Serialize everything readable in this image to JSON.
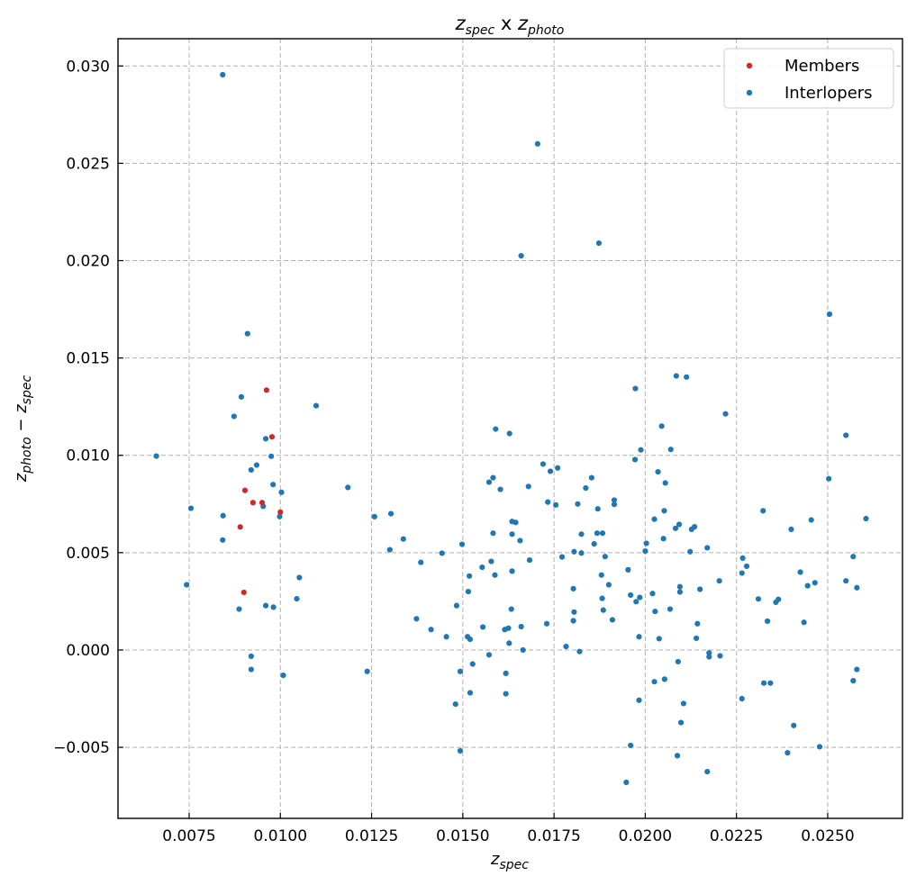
{
  "chart_data": {
    "type": "scatter",
    "title": {
      "base": "z",
      "sub": "spec",
      "mid": " x ",
      "base2": "z",
      "sub2": "photo"
    },
    "xlabel": {
      "base": "z",
      "sub": "spec"
    },
    "ylabel": {
      "base": "z",
      "sub": "photo",
      "mid": " − ",
      "base2": "z",
      "sub2": "spec"
    },
    "xlim": [
      0.00555,
      0.02705
    ],
    "ylim": [
      -0.00865,
      0.0314
    ],
    "xticks": [
      "0.0075",
      "0.0100",
      "0.0125",
      "0.0150",
      "0.0175",
      "0.0200",
      "0.0225",
      "0.0250"
    ],
    "xtick_values": [
      0.0075,
      0.01,
      0.0125,
      0.015,
      0.0175,
      0.02,
      0.0225,
      0.025
    ],
    "yticks": [
      "−0.005",
      "0.000",
      "0.005",
      "0.010",
      "0.015",
      "0.020",
      "0.025",
      "0.030"
    ],
    "ytick_values": [
      -0.005,
      0.0,
      0.005,
      0.01,
      0.015,
      0.02,
      0.025,
      0.03
    ],
    "grid": true,
    "legend_position": "top-right",
    "series": [
      {
        "name": "Members",
        "color": "#d62728",
        "points": [
          [
            0.00962,
            0.01335
          ],
          [
            0.00977,
            0.01095
          ],
          [
            0.00903,
            0.0082
          ],
          [
            0.00925,
            0.00757
          ],
          [
            0.0095,
            0.00757
          ],
          [
            0.01,
            0.00708
          ],
          [
            0.0089,
            0.00632
          ],
          [
            0.009,
            0.00296
          ]
        ]
      },
      {
        "name": "Interlopers",
        "color": "#1f77b4",
        "points": [
          [
            0.00842,
            0.02955
          ],
          [
            0.0091,
            0.01625
          ],
          [
            0.00893,
            0.013
          ],
          [
            0.00873,
            0.012
          ],
          [
            0.0066,
            0.00996
          ],
          [
            0.0096,
            0.01085
          ],
          [
            0.00975,
            0.00995
          ],
          [
            0.00935,
            0.0095
          ],
          [
            0.0092,
            0.00925
          ],
          [
            0.0098,
            0.0085
          ],
          [
            0.01003,
            0.0081
          ],
          [
            0.00953,
            0.00738
          ],
          [
            0.00998,
            0.00685
          ],
          [
            0.00755,
            0.00728
          ],
          [
            0.00843,
            0.0069
          ],
          [
            0.00842,
            0.00565
          ],
          [
            0.00743,
            0.00335
          ],
          [
            0.01052,
            0.00372
          ],
          [
            0.01045,
            0.00263
          ],
          [
            0.0096,
            0.00228
          ],
          [
            0.00981,
            0.0022
          ],
          [
            0.00887,
            0.0021
          ],
          [
            0.0092,
            -0.00032
          ],
          [
            0.0092,
            -0.001
          ],
          [
            0.01008,
            -0.0013
          ],
          [
            0.01098,
            0.01255
          ],
          [
            0.01185,
            0.00835
          ],
          [
            0.01258,
            0.00685
          ],
          [
            0.01303,
            0.007
          ],
          [
            0.013,
            0.00515
          ],
          [
            0.01337,
            0.0057
          ],
          [
            0.01385,
            0.0045
          ],
          [
            0.01373,
            0.0016
          ],
          [
            0.01413,
            0.00105
          ],
          [
            0.01238,
            -0.0011
          ],
          [
            0.01443,
            0.00497
          ],
          [
            0.01455,
            0.00068
          ],
          [
            0.01483,
            0.00228
          ],
          [
            0.01498,
            0.00543
          ],
          [
            0.01518,
            0.0038
          ],
          [
            0.01515,
            0.003
          ],
          [
            0.01513,
            0.00068
          ],
          [
            0.0152,
            0.00055
          ],
          [
            0.01527,
            -0.00072
          ],
          [
            0.01493,
            -0.0011
          ],
          [
            0.0152,
            -0.0022
          ],
          [
            0.0148,
            -0.00278
          ],
          [
            0.01493,
            -0.00518
          ],
          [
            0.01553,
            0.00425
          ],
          [
            0.01555,
            0.00118
          ],
          [
            0.01572,
            0.00862
          ],
          [
            0.01583,
            0.00885
          ],
          [
            0.01578,
            0.00455
          ],
          [
            0.01583,
            0.006
          ],
          [
            0.01588,
            0.00385
          ],
          [
            0.01572,
            -0.00025
          ],
          [
            0.0159,
            0.01135
          ],
          [
            0.01603,
            0.00825
          ],
          [
            0.01628,
            0.01112
          ],
          [
            0.01635,
            0.0066
          ],
          [
            0.01645,
            0.00655
          ],
          [
            0.01635,
            0.00595
          ],
          [
            0.01657,
            0.00562
          ],
          [
            0.01635,
            0.00405
          ],
          [
            0.01615,
            0.00105
          ],
          [
            0.01625,
            0.00112
          ],
          [
            0.01633,
            0.0021
          ],
          [
            0.01627,
            0.00035
          ],
          [
            0.01618,
            -0.0012
          ],
          [
            0.01618,
            -0.00225
          ],
          [
            0.0166,
            0.0012
          ],
          [
            0.01665,
            0.0
          ],
          [
            0.0166,
            0.02025
          ],
          [
            0.0168,
            0.0084
          ],
          [
            0.01683,
            0.00462
          ],
          [
            0.01705,
            0.026
          ],
          [
            0.0172,
            0.00955
          ],
          [
            0.0174,
            0.00918
          ],
          [
            0.0176,
            0.00935
          ],
          [
            0.01733,
            0.0076
          ],
          [
            0.01755,
            0.00745
          ],
          [
            0.0173,
            0.00135
          ],
          [
            0.01772,
            0.00478
          ],
          [
            0.01783,
            0.00018
          ],
          [
            0.01803,
            0.00315
          ],
          [
            0.01805,
            0.00505
          ],
          [
            0.01805,
            0.00195
          ],
          [
            0.01803,
            0.0015
          ],
          [
            0.01815,
            0.0075
          ],
          [
            0.0182,
            -8e-05
          ],
          [
            0.01825,
            0.00595
          ],
          [
            0.01825,
            0.00498
          ],
          [
            0.01837,
            0.00832
          ],
          [
            0.01853,
            0.00885
          ],
          [
            0.0186,
            0.00545
          ],
          [
            0.0187,
            0.00725
          ],
          [
            0.01868,
            0.006
          ],
          [
            0.01883,
            0.006
          ],
          [
            0.0189,
            0.0048
          ],
          [
            0.0188,
            0.00385
          ],
          [
            0.01882,
            0.00265
          ],
          [
            0.01885,
            0.00205
          ],
          [
            0.019,
            0.00335
          ],
          [
            0.0191,
            0.00155
          ],
          [
            0.01915,
            0.0077
          ],
          [
            0.01915,
            0.00748
          ],
          [
            0.01873,
            0.0209
          ],
          [
            0.01953,
            0.00412
          ],
          [
            0.0196,
            0.00282
          ],
          [
            0.01975,
            0.00248
          ],
          [
            0.01985,
            0.0027
          ],
          [
            0.01983,
            0.00068
          ],
          [
            0.01983,
            -0.00258
          ],
          [
            0.0196,
            -0.0049
          ],
          [
            0.01948,
            -0.0068
          ],
          [
            0.01973,
            0.01343
          ],
          [
            0.01972,
            0.00978
          ],
          [
            0.01988,
            0.01028
          ],
          [
            0.02,
            0.00508
          ],
          [
            0.02003,
            0.00548
          ],
          [
            0.0202,
            0.0029
          ],
          [
            0.02027,
            0.00198
          ],
          [
            0.02025,
            0.00672
          ],
          [
            0.02035,
            0.00915
          ],
          [
            0.02045,
            0.0115
          ],
          [
            0.02052,
            0.00715
          ],
          [
            0.02055,
            0.00858
          ],
          [
            0.0205,
            0.00572
          ],
          [
            0.02038,
            0.00058
          ],
          [
            0.02025,
            -0.00163
          ],
          [
            0.02053,
            -0.0015
          ],
          [
            0.0207,
            0.0103
          ],
          [
            0.02068,
            0.0021
          ],
          [
            0.02083,
            0.00625
          ],
          [
            0.02093,
            0.00645
          ],
          [
            0.02095,
            0.00325
          ],
          [
            0.02095,
            0.00298
          ],
          [
            0.0209,
            -0.0006
          ],
          [
            0.02098,
            -0.00373
          ],
          [
            0.02105,
            -0.00275
          ],
          [
            0.02088,
            -0.00543
          ],
          [
            0.02085,
            0.01408
          ],
          [
            0.02113,
            0.01402
          ],
          [
            0.02123,
            0.00505
          ],
          [
            0.02127,
            0.0062
          ],
          [
            0.02135,
            0.00633
          ],
          [
            0.02143,
            0.00135
          ],
          [
            0.0214,
            0.0006
          ],
          [
            0.0215,
            0.00312
          ],
          [
            0.0217,
            0.00525
          ],
          [
            0.02175,
            -0.00015
          ],
          [
            0.02175,
            -0.00035
          ],
          [
            0.0217,
            -0.00625
          ],
          [
            0.02203,
            0.00355
          ],
          [
            0.02205,
            -0.0003
          ],
          [
            0.0222,
            0.01213
          ],
          [
            0.02267,
            0.00472
          ],
          [
            0.02265,
            0.00395
          ],
          [
            0.02278,
            0.0043
          ],
          [
            0.02265,
            -0.0025
          ],
          [
            0.0231,
            0.00262
          ],
          [
            0.02323,
            0.00715
          ],
          [
            0.02325,
            -0.0017
          ],
          [
            0.02335,
            0.00148
          ],
          [
            0.02343,
            -0.0017
          ],
          [
            0.02358,
            0.00245
          ],
          [
            0.02365,
            0.0026
          ],
          [
            0.0239,
            -0.00528
          ],
          [
            0.024,
            0.0062
          ],
          [
            0.02407,
            -0.00388
          ],
          [
            0.02425,
            0.004
          ],
          [
            0.02435,
            0.00142
          ],
          [
            0.02445,
            0.0033
          ],
          [
            0.02455,
            0.00668
          ],
          [
            0.02465,
            0.00345
          ],
          [
            0.02478,
            -0.00497
          ],
          [
            0.02503,
            0.0088
          ],
          [
            0.02505,
            0.01725
          ],
          [
            0.0255,
            0.01103
          ],
          [
            0.0255,
            0.00355
          ],
          [
            0.0257,
            0.0048
          ],
          [
            0.0257,
            -0.00158
          ],
          [
            0.0258,
            0.0032
          ],
          [
            0.0258,
            -0.001
          ],
          [
            0.02605,
            0.00675
          ]
        ]
      }
    ]
  }
}
